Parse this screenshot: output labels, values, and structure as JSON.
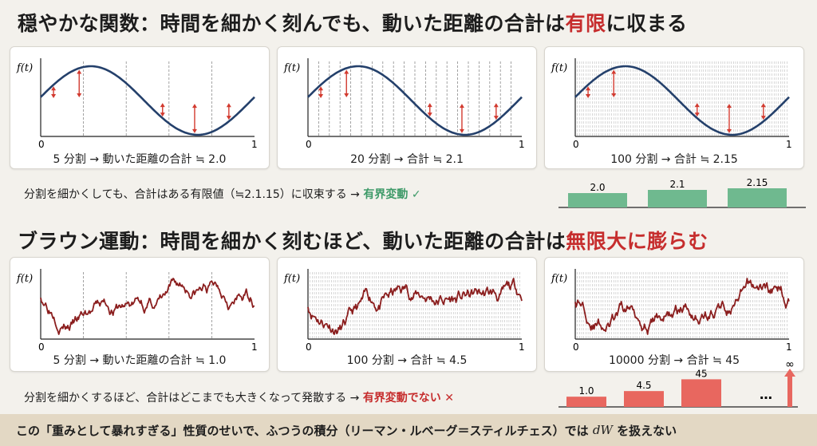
{
  "top": {
    "title_pre": "穏やかな関数：時間を細かく刻んでも、動いた距離の合計は",
    "title_hl": "有限",
    "title_post": "に収まる",
    "panels": [
      {
        "caption": "5 分割 → 動いた距離の合計 ≒ 2.0",
        "divisions": 5
      },
      {
        "caption": "20 分割 → 合計 ≒ 2.1",
        "divisions": 20
      },
      {
        "caption": "100 分割 → 合計 ≒ 2.15",
        "divisions": 100
      }
    ],
    "note_text": "分割を細かくしても、合計はある有限値（≒2.1.15）に収束する →",
    "note_result": "有界変動",
    "check_icon": "✓",
    "bars": {
      "labels": [
        "2.0",
        "2.1",
        "2.15"
      ],
      "values": [
        2.0,
        2.1,
        2.15
      ],
      "color": "#6fb98f"
    }
  },
  "bottom": {
    "title_pre": "ブラウン運動：時間を細かく刻むほど、動いた距離の合計は",
    "title_hl": "無限大に膨らむ",
    "panels": [
      {
        "caption": "5 分割 → 動いた距離の合計 ≒ 1.0",
        "divisions": 5
      },
      {
        "caption": "100 分割 → 合計 ≒ 4.5",
        "divisions": 100
      },
      {
        "caption": "10000 分割 → 合計 ≒ 45",
        "divisions": 10000
      }
    ],
    "note_text": "分割を細かくするほど、合計はどこまでも大きくなって発散する →",
    "note_result": "有界変動でない",
    "cross_icon": "✕",
    "bars": {
      "labels": [
        "1.0",
        "4.5",
        "45"
      ],
      "values": [
        1.0,
        4.5,
        45
      ],
      "color": "#e8675f"
    },
    "ellipsis": "…",
    "infinity": "∞"
  },
  "axis": {
    "ylabel": "f(t)",
    "x0": "0",
    "x1": "1"
  },
  "footer": {
    "pre": "この「重みとして暴れすぎる」性質のせいで、ふつうの積分（リーマン・ルベーグ＝スティルチェス）では",
    "math": "dW",
    "post": "を扱えない"
  },
  "colors": {
    "smooth": "#24406b",
    "brownian": "#8b1e1e",
    "arrow": "#d23a2f",
    "accent": "#c62d2d",
    "ok": "#3e9a68"
  }
}
